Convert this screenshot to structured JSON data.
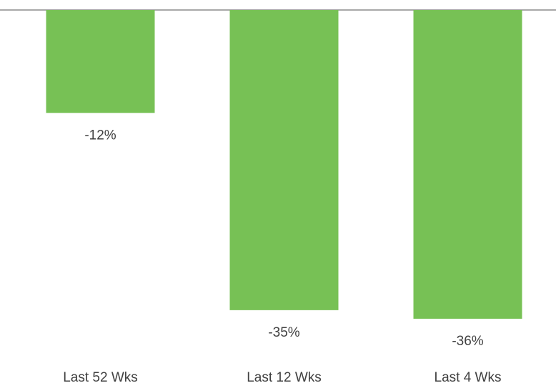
{
  "chart_data": {
    "type": "bar",
    "categories": [
      "Last 52 Wks",
      "Last 12 Wks",
      "Last 4 Wks"
    ],
    "values": [
      -12,
      -35,
      -36
    ],
    "value_labels": [
      "-12%",
      "-35%",
      "-36%"
    ],
    "color": "#77c155",
    "ylim": [
      -40,
      0
    ]
  }
}
